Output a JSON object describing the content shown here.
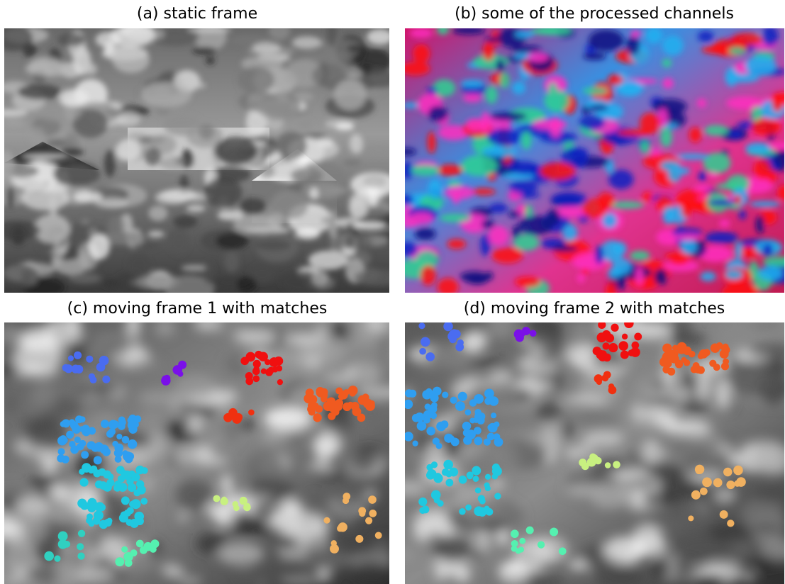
{
  "panels": [
    {
      "title": "(a) static frame"
    },
    {
      "title": "(b) some of the processed channels"
    },
    {
      "title": "(c) moving frame 1 with matches"
    },
    {
      "title": "(d) moving frame 2 with matches"
    }
  ]
}
